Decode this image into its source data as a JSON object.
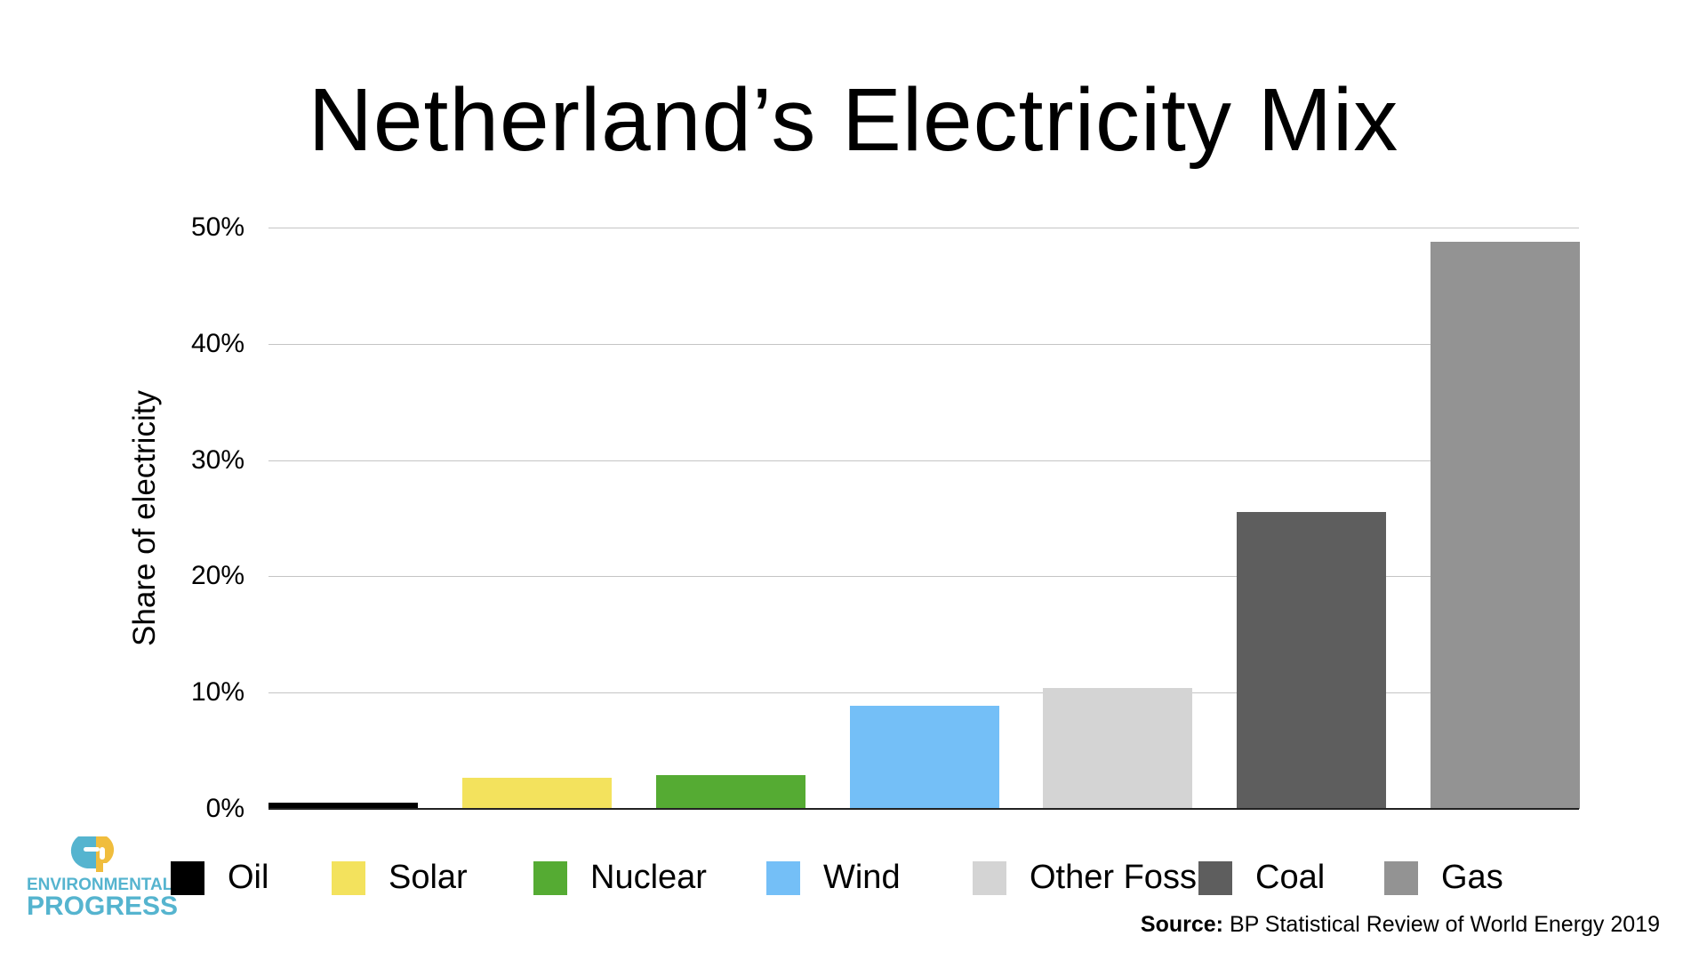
{
  "title": "Netherland’s Electricity Mix",
  "ylabel": "Share of electricity",
  "yticks": [
    "0%",
    "10%",
    "20%",
    "30%",
    "40%",
    "50%"
  ],
  "legend": [
    {
      "label": "Oil",
      "color": "#000000"
    },
    {
      "label": "Solar",
      "color": "#f3e25d"
    },
    {
      "label": "Nuclear",
      "color": "#55ab33"
    },
    {
      "label": "Wind",
      "color": "#74bff7"
    },
    {
      "label": "Other Fossil",
      "color": "#d4d4d4"
    },
    {
      "label": "Coal",
      "color": "#5e5e5e"
    },
    {
      "label": "Gas",
      "color": "#939393"
    }
  ],
  "source": {
    "label": "Source:",
    "text": " BP Statistical Review of World Energy 2019"
  },
  "logo": {
    "line1": "ENVIRONMENTAL",
    "line2": "PROGRESS"
  },
  "chart_data": {
    "type": "bar",
    "title": "Netherland’s Electricity Mix",
    "xlabel": "",
    "ylabel": "Share of electricity",
    "categories": [
      "Oil",
      "Solar",
      "Nuclear",
      "Wind",
      "Other Fossil",
      "Coal",
      "Gas"
    ],
    "values": [
      0.5,
      2.7,
      2.9,
      8.9,
      10.4,
      25.5,
      48.8
    ],
    "unit": "%",
    "ylim": [
      0,
      50
    ],
    "yticks": [
      0,
      10,
      20,
      30,
      40,
      50
    ],
    "grid": true,
    "legend_position": "bottom",
    "colors": [
      "#000000",
      "#f3e25d",
      "#55ab33",
      "#74bff7",
      "#d4d4d4",
      "#5e5e5e",
      "#939393"
    ],
    "source": "BP Statistical Review of World Energy 2019"
  }
}
